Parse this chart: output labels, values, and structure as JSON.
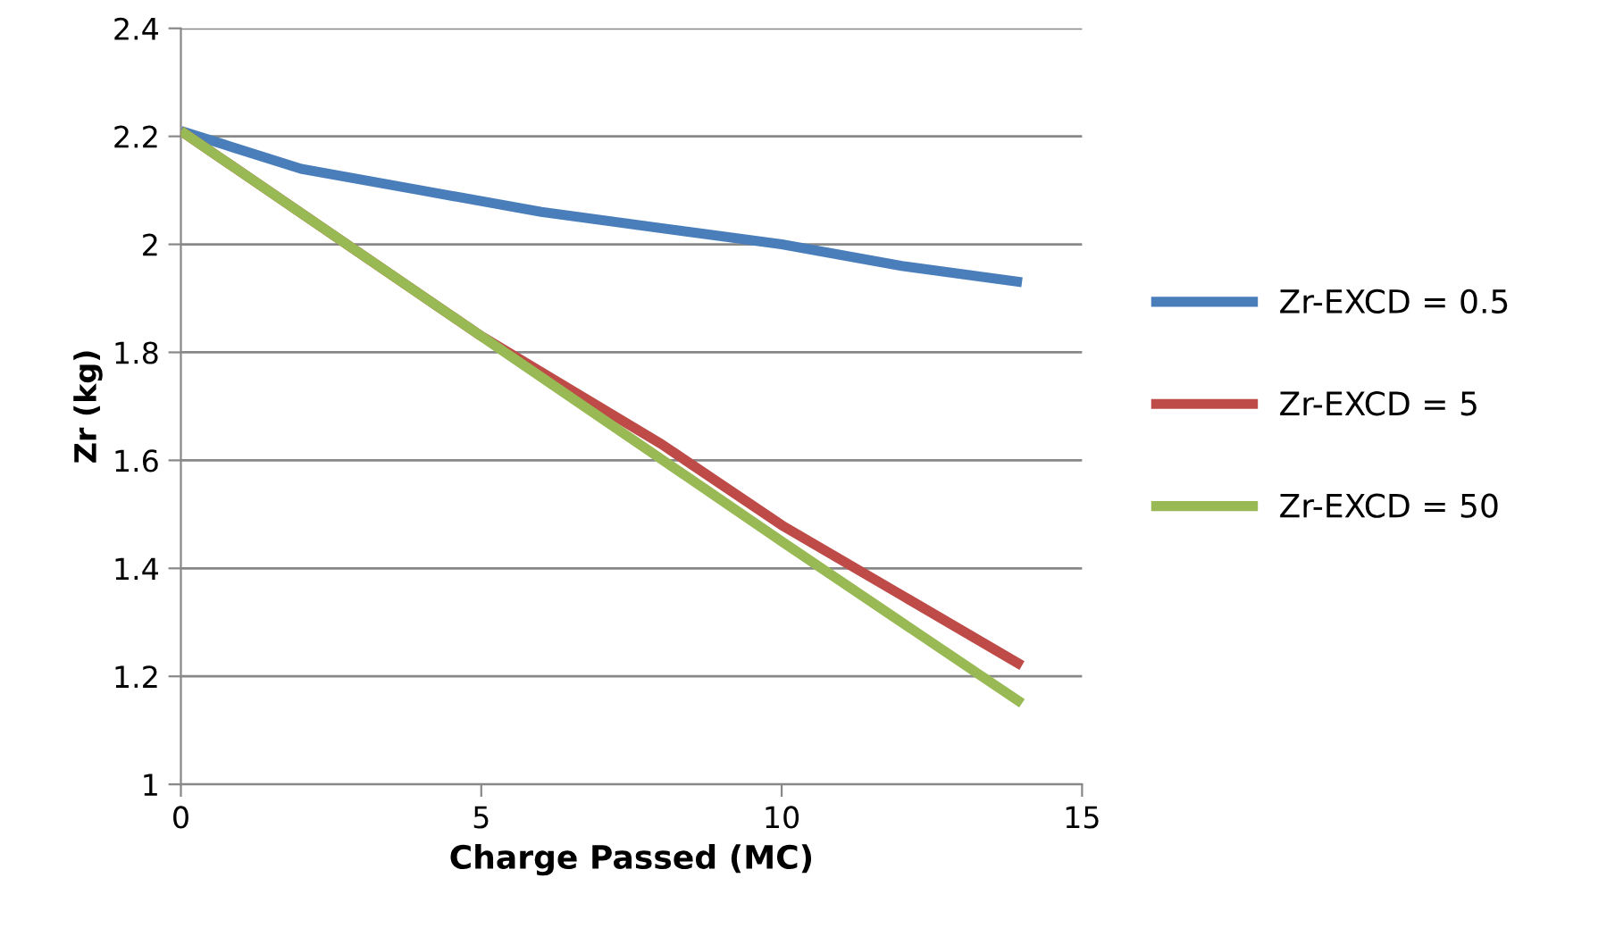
{
  "chart_data": {
    "type": "line",
    "xlabel": "Charge Passed (MC)",
    "ylabel": "Zr (kg)",
    "xlim": [
      0,
      15
    ],
    "xticks": [
      0,
      5,
      10,
      15
    ],
    "ylim": [
      1,
      2.4
    ],
    "yticks": [
      1,
      1.2,
      1.4,
      1.6,
      1.8,
      2,
      2.2,
      2.4
    ],
    "grid": "y",
    "legend": "right",
    "marker": "none",
    "line_style": "solid",
    "series": [
      {
        "name": "Zr-EXCD = 0.5",
        "color": "#4a7ebb",
        "x": [
          0,
          2,
          4,
          6,
          8,
          10,
          12,
          14
        ],
        "values": [
          2.21,
          2.14,
          2.1,
          2.06,
          2.03,
          2.0,
          1.96,
          1.93
        ]
      },
      {
        "name": "Zr-EXCD = 5",
        "color": "#be4b48",
        "x": [
          0,
          5,
          8,
          10,
          12,
          14
        ],
        "values": [
          2.21,
          1.83,
          1.63,
          1.48,
          1.35,
          1.22
        ]
      },
      {
        "name": "Zr-EXCD = 50",
        "color": "#98b954",
        "x": [
          0,
          5,
          10,
          14
        ],
        "values": [
          2.21,
          1.83,
          1.45,
          1.15
        ]
      }
    ]
  }
}
